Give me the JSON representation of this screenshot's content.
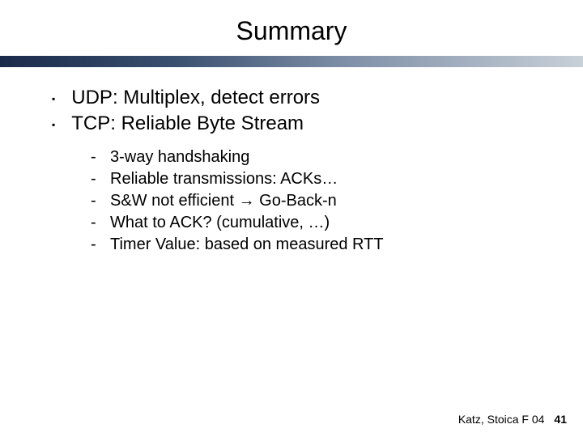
{
  "slide": {
    "title": "Summary",
    "divider_gradient": [
      "#1a2a4a",
      "#3a5070",
      "#8090a8",
      "#c8d0d8"
    ],
    "main_items": [
      "UDP: Multiplex, detect errors",
      "TCP: Reliable Byte Stream"
    ],
    "sub_items": [
      "3-way handshaking",
      "Reliable transmissions: ACKs…",
      "S&W not efficient → Go-Back-n",
      "What to ACK?  (cumulative, …)",
      "Timer Value: based on measured RTT"
    ],
    "footer_text": "Katz, Stoica F 04",
    "page_number": "41"
  },
  "style": {
    "title_fontsize": 32,
    "main_fontsize": 24,
    "sub_fontsize": 20,
    "footer_fontsize": 14,
    "background_color": "#ffffff",
    "text_color": "#000000",
    "main_bullet_char": "▪",
    "sub_bullet_char": "-"
  }
}
